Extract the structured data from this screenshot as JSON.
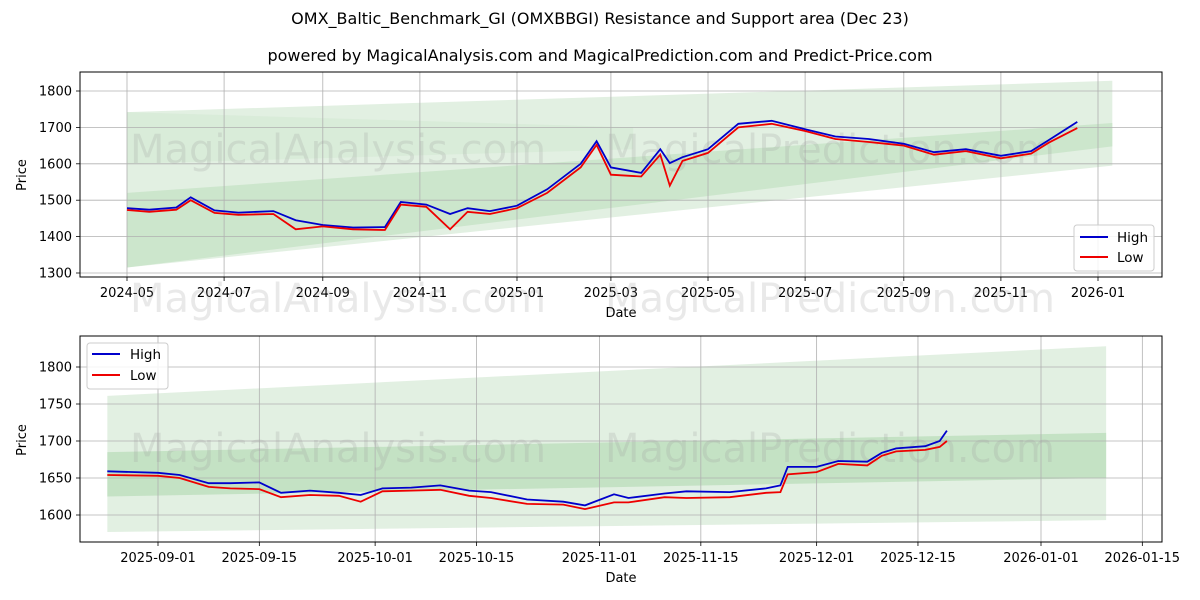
{
  "title": "OMX_Baltic_Benchmark_GI (OMXBBGI) Resistance and Support area (Dec 23)",
  "subtitle": "powered by MagicalAnalysis.com and MagicalPrediction.com and Predict-Price.com",
  "watermarks": [
    "MagicalAnalysis.com",
    "MagicalPrediction.com"
  ],
  "colors": {
    "high": "#0000cc",
    "low": "#ee0000",
    "band_light": "#d5ead5",
    "band_dark": "#b5d9b5",
    "grid": "#b0b0b0"
  },
  "legend": {
    "high": "High",
    "low": "Low"
  },
  "chart_data": [
    {
      "type": "line",
      "title": "Full history",
      "xlabel": "Date",
      "ylabel": "Price",
      "ylim": [
        1290,
        1850
      ],
      "grid": true,
      "legend_position": "lower right",
      "xticks": [
        "2024-05",
        "2024-07",
        "2024-09",
        "2024-11",
        "2025-01",
        "2025-03",
        "2025-05",
        "2025-07",
        "2025-09",
        "2025-11",
        "2026-01"
      ],
      "yticks": [
        "1300",
        "1400",
        "1500",
        "1600",
        "1700",
        "1800"
      ],
      "x": [
        "2024-05-01",
        "2024-05-15",
        "2024-06-01",
        "2024-06-10",
        "2024-06-25",
        "2024-07-10",
        "2024-08-01",
        "2024-08-15",
        "2024-09-01",
        "2024-09-20",
        "2024-10-10",
        "2024-10-20",
        "2024-11-05",
        "2024-11-20",
        "2024-12-01",
        "2024-12-15",
        "2025-01-01",
        "2025-01-20",
        "2025-02-10",
        "2025-02-20",
        "2025-03-01",
        "2025-03-20",
        "2025-04-01",
        "2025-04-07",
        "2025-04-15",
        "2025-05-01",
        "2025-05-20",
        "2025-06-10",
        "2025-07-01",
        "2025-07-20",
        "2025-08-10",
        "2025-09-01",
        "2025-09-20",
        "2025-10-10",
        "2025-11-01",
        "2025-11-20",
        "2025-12-01",
        "2025-12-19"
      ],
      "series": [
        {
          "name": "High",
          "values": [
            1478,
            1474,
            1480,
            1508,
            1472,
            1466,
            1470,
            1445,
            1432,
            1425,
            1426,
            1495,
            1488,
            1462,
            1478,
            1470,
            1485,
            1530,
            1600,
            1662,
            1590,
            1575,
            1640,
            1602,
            1618,
            1640,
            1710,
            1718,
            1695,
            1675,
            1668,
            1655,
            1632,
            1640,
            1622,
            1635,
            1665,
            1715
          ]
        },
        {
          "name": "Low",
          "values": [
            1473,
            1468,
            1474,
            1500,
            1465,
            1460,
            1462,
            1420,
            1428,
            1420,
            1418,
            1488,
            1482,
            1420,
            1468,
            1462,
            1478,
            1520,
            1590,
            1652,
            1570,
            1565,
            1625,
            1540,
            1608,
            1630,
            1700,
            1710,
            1690,
            1668,
            1660,
            1650,
            1625,
            1635,
            1615,
            1628,
            1658,
            1698
          ]
        }
      ],
      "bands": [
        {
          "name": "outer-support-area",
          "x": [
            "2024-05-01",
            "2026-01-10"
          ],
          "lower": [
            1315,
            1595
          ],
          "upper": [
            1742,
            1828
          ]
        },
        {
          "name": "upper-resistance-area",
          "x": [
            "2024-05-01",
            "2025-03-15"
          ],
          "lower": [
            1600,
            1640
          ],
          "upper": [
            1742,
            1700
          ]
        },
        {
          "name": "inner-area",
          "x": [
            "2024-05-01",
            "2026-01-10"
          ],
          "lower": [
            1315,
            1648
          ],
          "upper": [
            1520,
            1712
          ]
        }
      ]
    },
    {
      "type": "line",
      "title": "Recent zoom",
      "xlabel": "Date",
      "ylabel": "Price",
      "ylim": [
        1565,
        1842
      ],
      "grid": true,
      "legend_position": "upper left",
      "xticks": [
        "2025-09-01",
        "2025-09-15",
        "2025-10-01",
        "2025-10-15",
        "2025-11-01",
        "2025-11-15",
        "2025-12-01",
        "2025-12-15",
        "2026-01-01",
        "2026-01-15"
      ],
      "yticks": [
        "1600",
        "1650",
        "1700",
        "1750",
        "1800"
      ],
      "x": [
        "2025-08-25",
        "2025-09-01",
        "2025-09-04",
        "2025-09-08",
        "2025-09-11",
        "2025-09-15",
        "2025-09-18",
        "2025-09-22",
        "2025-09-26",
        "2025-09-29",
        "2025-10-02",
        "2025-10-06",
        "2025-10-10",
        "2025-10-14",
        "2025-10-17",
        "2025-10-22",
        "2025-10-27",
        "2025-10-30",
        "2025-11-03",
        "2025-11-05",
        "2025-11-10",
        "2025-11-13",
        "2025-11-19",
        "2025-11-24",
        "2025-11-26",
        "2025-11-27",
        "2025-12-01",
        "2025-12-04",
        "2025-12-08",
        "2025-12-10",
        "2025-12-12",
        "2025-12-16",
        "2025-12-18",
        "2025-12-19"
      ],
      "series": [
        {
          "name": "High",
          "values": [
            1659,
            1657,
            1654,
            1643,
            1643,
            1644,
            1630,
            1633,
            1630,
            1627,
            1636,
            1637,
            1640,
            1633,
            1631,
            1621,
            1618,
            1613,
            1628,
            1623,
            1629,
            1632,
            1631,
            1636,
            1640,
            1665,
            1665,
            1673,
            1672,
            1684,
            1690,
            1693,
            1700,
            1714
          ]
        },
        {
          "name": "Low",
          "values": [
            1654,
            1653,
            1650,
            1638,
            1636,
            1635,
            1624,
            1627,
            1626,
            1618,
            1632,
            1633,
            1634,
            1626,
            1623,
            1615,
            1614,
            1608,
            1617,
            1617,
            1624,
            1623,
            1624,
            1630,
            1631,
            1655,
            1658,
            1669,
            1667,
            1680,
            1686,
            1688,
            1692,
            1700
          ]
        }
      ],
      "bands": [
        {
          "name": "outer-area",
          "x": [
            "2025-08-25",
            "2026-01-10"
          ],
          "lower": [
            1577,
            1593
          ],
          "upper": [
            1761,
            1828
          ]
        },
        {
          "name": "inner-area",
          "x": [
            "2025-08-25",
            "2026-01-10"
          ],
          "lower": [
            1625,
            1650
          ],
          "upper": [
            1685,
            1711
          ]
        }
      ]
    }
  ]
}
